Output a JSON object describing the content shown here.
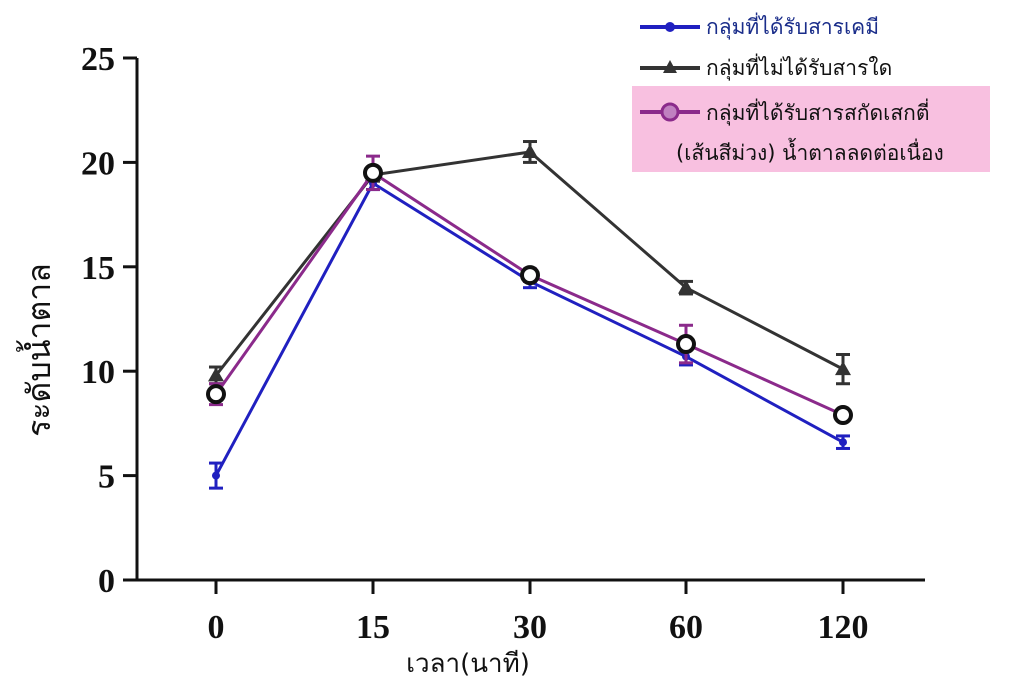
{
  "chart_data": {
    "type": "line",
    "title": "",
    "xlabel": "เวลา(นาที)",
    "ylabel": "ระดับน้ำตาล",
    "categories": [
      "0",
      "15",
      "30",
      "60",
      "120"
    ],
    "y_ticks": [
      "0",
      "5",
      "10",
      "15",
      "20",
      "25"
    ],
    "ylim": [
      0,
      25
    ],
    "grid": false,
    "legend_position": "top-right",
    "series": [
      {
        "name": "กลุ่มที่ได้รับสารเคมี",
        "values": [
          5.0,
          19.0,
          14.3,
          10.7,
          6.6
        ],
        "errors": [
          0.6,
          0.3,
          0.3,
          0.4,
          0.3
        ],
        "color": "#2020c0",
        "marker": "circle-small"
      },
      {
        "name": "กลุ่มที่ไม่ได้รับสารใด",
        "values": [
          9.8,
          19.4,
          20.5,
          14.0,
          10.1
        ],
        "errors": [
          0.4,
          0.3,
          0.5,
          0.3,
          0.7
        ],
        "color": "#333333",
        "marker": "triangle"
      },
      {
        "name_lines": [
          "กลุ่มที่ได้รับสารสกัดเสกตี่",
          "(เส้นสีม่วง) น้ำตาลลดต่อเนื่อง"
        ],
        "values": [
          8.9,
          19.5,
          14.6,
          11.3,
          7.9
        ],
        "errors": [
          0.5,
          0.8,
          0.3,
          0.9,
          0.2
        ],
        "color": "#8b2a8b",
        "marker": "ring"
      }
    ],
    "legend_highlight_color": "#f8c0e0"
  }
}
